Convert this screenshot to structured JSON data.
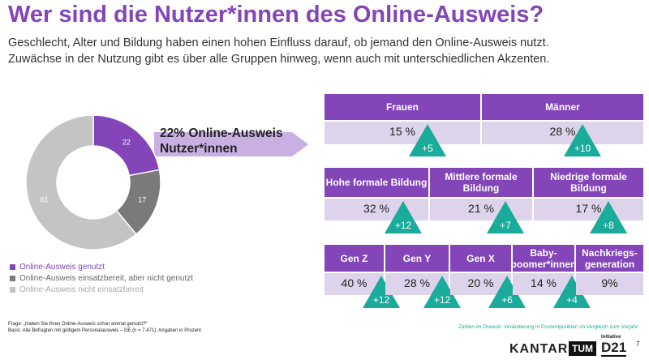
{
  "title": "Wer sind die Nutzer*innen des Online-Ausweis?",
  "subtitle": [
    "Geschlecht, Alter und Bildung haben einen hohen Einfluss darauf, ob jemand den Online-Ausweis nutzt.",
    "Zuwächse in der Nutzung gibt es über alle Gruppen hinweg, wenn auch mit unterschiedlichen Akzenten."
  ],
  "arrow_label": [
    "22% Online-Ausweis",
    "Nutzer*innen"
  ],
  "chart_data": {
    "type": "pie",
    "donut": true,
    "values": [
      22,
      17,
      61
    ],
    "labels": [
      "Online-Ausweis genutzt",
      "Online-Ausweis einsatzbereit, aber nicht genutzt",
      "Online-Ausweis nicht einsatzbereit"
    ],
    "colors": [
      "#8345b8",
      "#7a7a7a",
      "#c4c4c4"
    ],
    "legend": "bottom-left"
  },
  "groups": [
    [
      {
        "h": "Frauen",
        "v": "15 %",
        "d": "+5"
      },
      {
        "h": "Männer",
        "v": "28 %",
        "d": "+10"
      }
    ],
    [
      {
        "h": "Hohe formale Bildung",
        "v": "32 %",
        "d": "+12"
      },
      {
        "h": "Mittlere formale Bildung",
        "v": "21 %",
        "d": "+7"
      },
      {
        "h": "Niedrige formale Bildung",
        "v": "17 %",
        "d": "+8"
      }
    ],
    [
      {
        "h": "Gen Z",
        "v": "40 %",
        "d": "+12"
      },
      {
        "h": "Gen Y",
        "v": "28 %",
        "d": "+12"
      },
      {
        "h": "Gen X",
        "v": "20 %",
        "d": "+6"
      },
      {
        "h": "Baby-boomer*innen",
        "v": "14 %",
        "d": "+4"
      },
      {
        "h": "Nachkriegs-generation",
        "v": "9%",
        "d": ""
      }
    ]
  ],
  "footnotes": [
    "Frage: „Haben Sie Ihren Online-Ausweis schon einmal genutzt?“",
    "Basis: Alle Befragten mit gültigem Personalausweis – DE (n = 7.471); Angaben in Prozent"
  ],
  "triangle_note": "Zahlen im Dreieck: Veränderung in Prozentpunkten im Vergleich zum Vorjahr",
  "logos": {
    "kantar": "KANTAR",
    "d21_small": "Initiative",
    "d21": "D21"
  },
  "page_number": "7"
}
